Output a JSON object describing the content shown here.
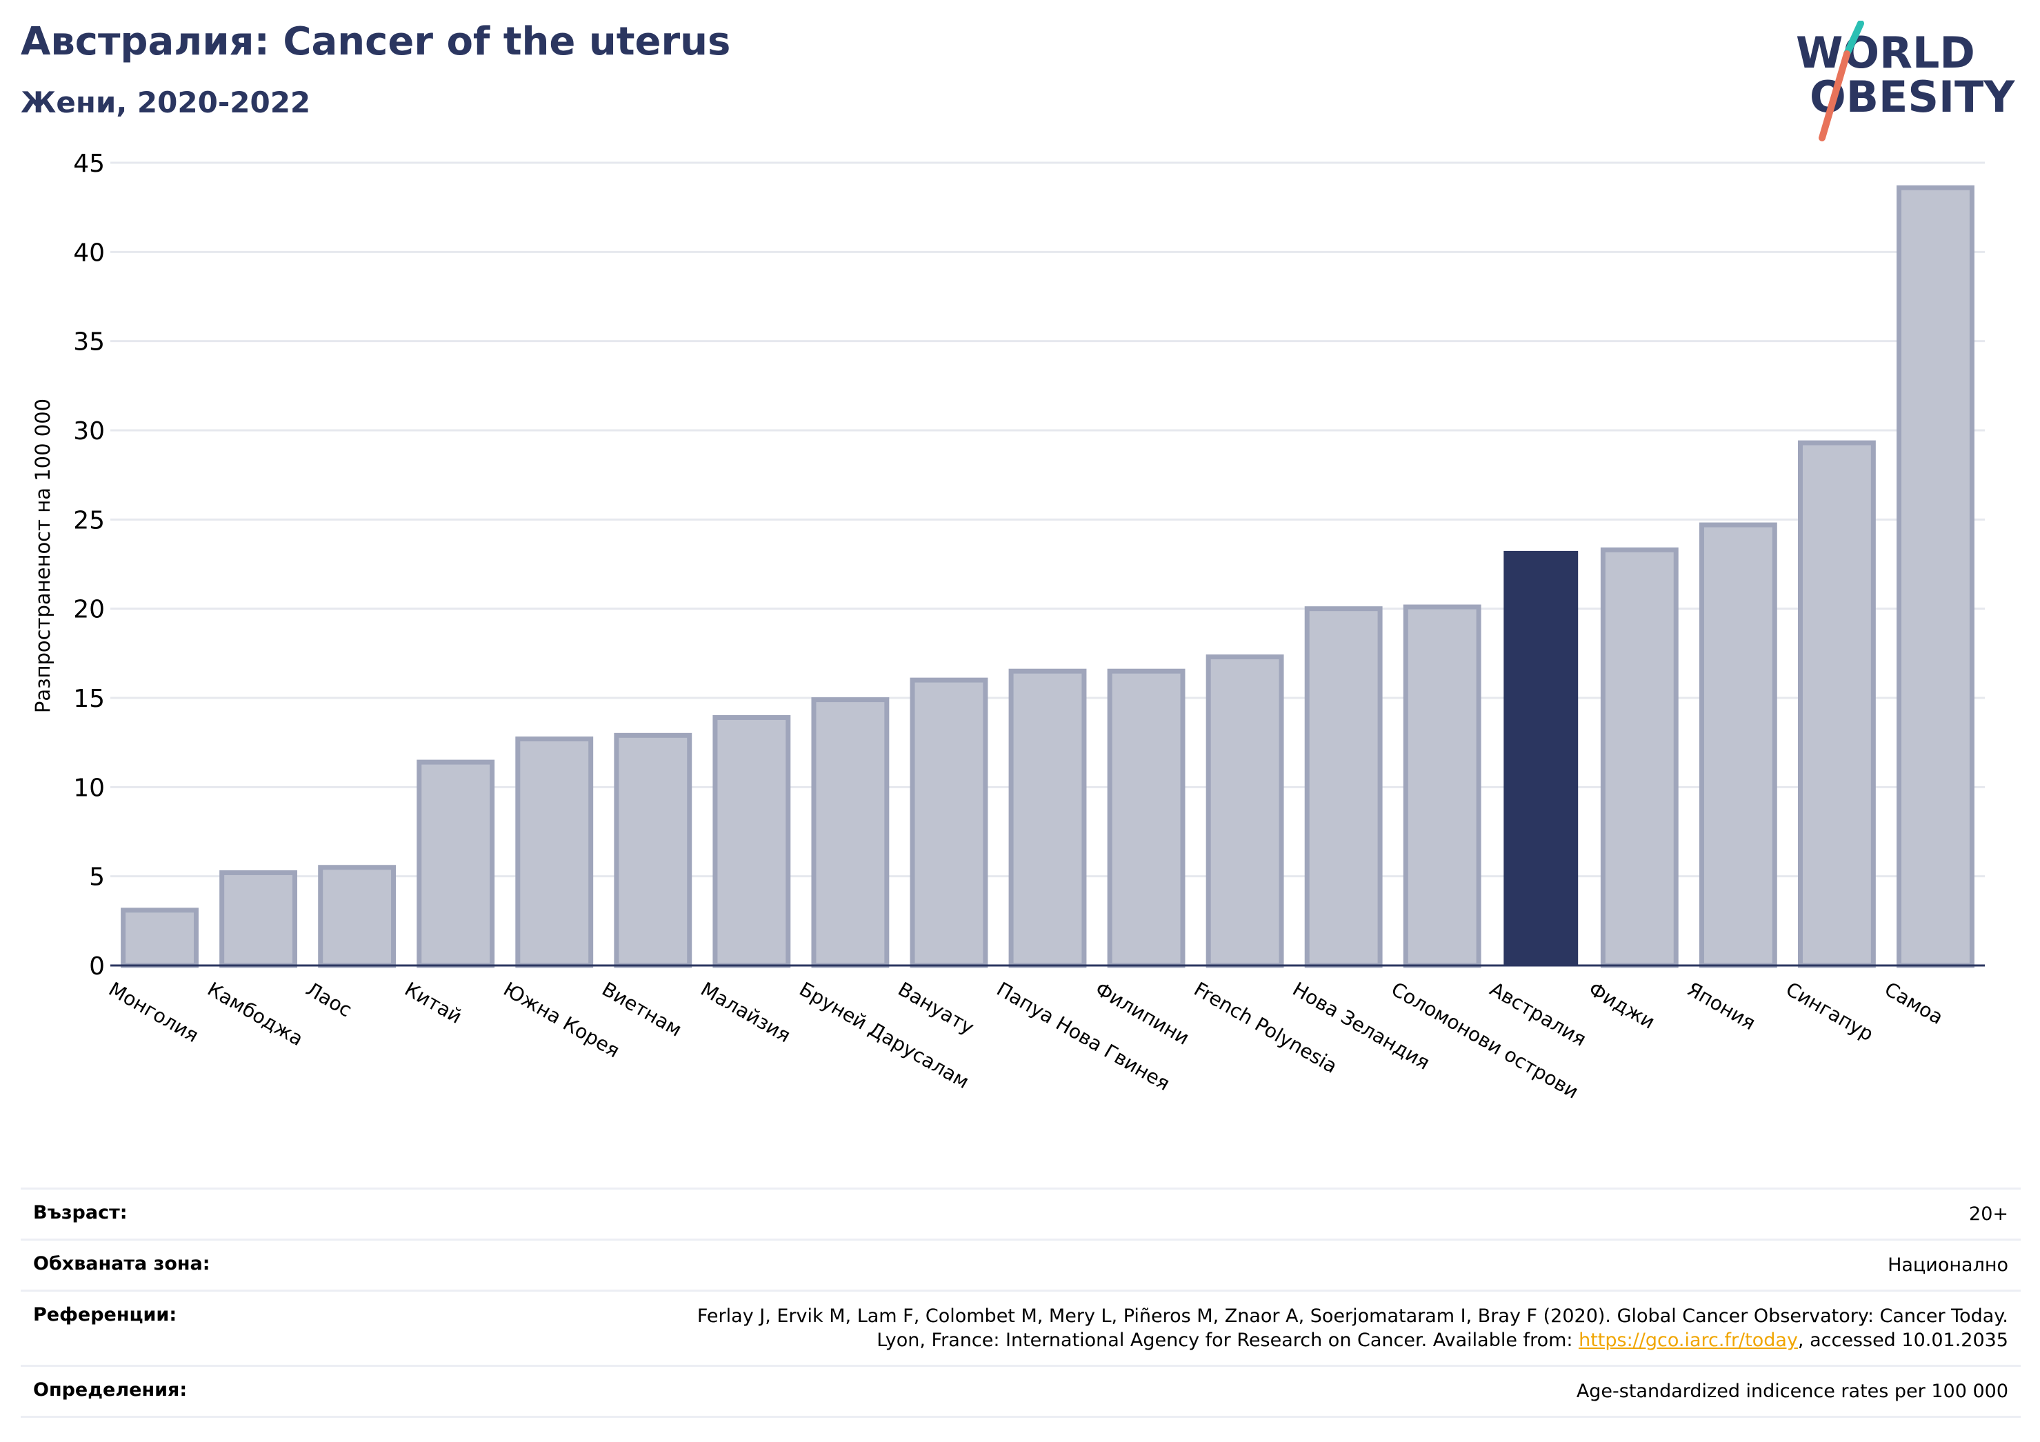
{
  "header": {
    "title": "Австралия: Cancer of the uterus",
    "subtitle": "Жени, 2020-2022"
  },
  "logo": {
    "line1": "WORLD",
    "line2": "OBESITY",
    "colors": {
      "text": "#2b3660",
      "slash_top": "#2bbfb3",
      "slash_bottom": "#e8735a"
    }
  },
  "chart_data": {
    "type": "bar",
    "ylabel": "Разпространеност  на 100 000",
    "ylim": [
      0,
      45
    ],
    "yticks": [
      0,
      5,
      10,
      15,
      20,
      25,
      30,
      35,
      40,
      45
    ],
    "grid": true,
    "highlight": "Австралия",
    "colors": {
      "bar": "#bfc3d0",
      "bar_edge": "#9fa5bb",
      "highlight": "#2b3660",
      "grid": "#e6e8ee",
      "axis": "#2b3660"
    },
    "categories": [
      "Монголия",
      "Камбоджа",
      "Лаос",
      "Китай",
      "Южна Корея",
      "Виетнам",
      "Малайзия",
      "Бруней Дарусалам",
      "Вануату",
      "Папуа Нова Гвинея",
      "Филипини",
      "French Polynesia",
      "Нова Зеландия",
      "Соломонови острови",
      "Австралия",
      "Фиджи",
      "Япония",
      "Сингапур",
      "Самоа"
    ],
    "values": [
      3.1,
      5.2,
      5.5,
      11.4,
      12.7,
      12.9,
      13.9,
      14.9,
      16.0,
      16.5,
      16.5,
      17.3,
      20.0,
      20.1,
      23.2,
      23.3,
      24.7,
      29.3,
      43.6
    ]
  },
  "info": {
    "age_label": "Възраст:",
    "age_value": "20+",
    "area_label": "Обхваната зона:",
    "area_value": "Национално",
    "refs_label": "Референции:",
    "refs_line1": "Ferlay J, Ervik M, Lam F, Colombet M, Mery L, Piñeros M, Znaor A, Soerjomataram I, Bray F (2020). Global Cancer Observatory: Cancer Today.",
    "refs_line2_pre": "Lyon, France: International Agency for Research on Cancer. Available from: ",
    "refs_link": "https://gco.iarc.fr/today",
    "refs_line2_post": ", accessed 10.01.2035",
    "defs_label": "Определения:",
    "defs_value": "Age-standardized indicence rates per 100 000"
  }
}
